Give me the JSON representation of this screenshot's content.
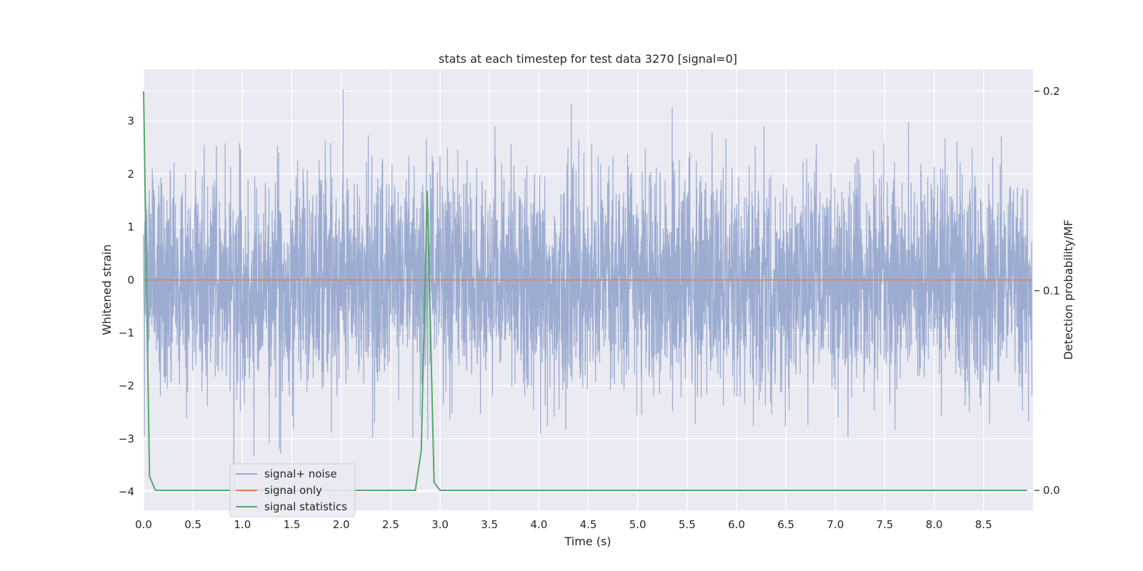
{
  "chart_data": {
    "type": "line",
    "title": "stats at each timestep for test data 3270 [signal=0]",
    "xlabel": "Time (s)",
    "ylabel_left": "Whitened strain",
    "ylabel_right": "Detection probability/MF",
    "xlim": [
      0.0,
      9.0
    ],
    "ylim_left": [
      -4.35,
      3.98
    ],
    "ylim_right": [
      -0.01,
      0.211
    ],
    "x_ticks": [
      "0.0",
      "0.5",
      "1.0",
      "1.5",
      "2.0",
      "2.5",
      "3.0",
      "3.5",
      "4.0",
      "4.5",
      "5.0",
      "5.5",
      "6.0",
      "6.5",
      "7.0",
      "7.5",
      "8.0",
      "8.5"
    ],
    "y_ticks_left": [
      "3",
      "2",
      "1",
      "0",
      "−1",
      "−2",
      "−3",
      "−4"
    ],
    "y_ticks_right": [
      "0.2",
      "0.1",
      "0.0"
    ],
    "grid": true,
    "legend_position": "lower-left",
    "series": [
      {
        "name": "signal+ noise",
        "axis": "left",
        "color": "#98a9cf",
        "kind": "noise",
        "x_range": [
          0.0,
          8.99
        ],
        "sigma": 1.0,
        "clip": [
          -4.0,
          3.6
        ]
      },
      {
        "name": "signal only",
        "axis": "left",
        "color": "#dd8452",
        "x": [
          0.0,
          8.99
        ],
        "y": [
          0.0,
          0.0
        ]
      },
      {
        "name": "signal statistics",
        "axis": "right",
        "color": "#55a868",
        "x": [
          0.0,
          0.06,
          0.12,
          0.18,
          2.75,
          2.81,
          2.87,
          2.94,
          3.0,
          8.94
        ],
        "y": [
          0.2,
          0.007,
          0.0,
          0.0,
          0.0,
          0.02,
          0.15,
          0.004,
          0.0,
          0.0
        ]
      }
    ]
  }
}
